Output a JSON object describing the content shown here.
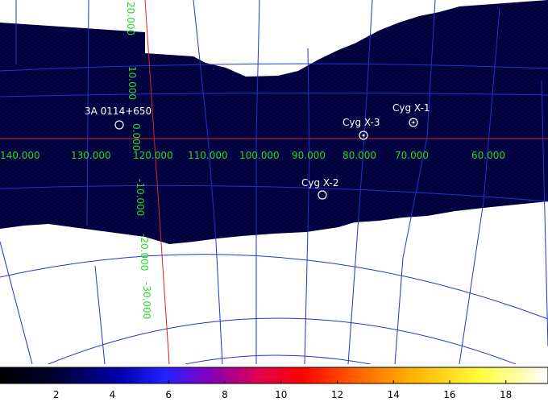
{
  "sky_map": {
    "longitude_labels": [
      "140.000",
      "130.000",
      "120.000",
      "110.000",
      "100.000",
      "90.000",
      "80.000",
      "70.000",
      "60.000"
    ],
    "latitude_labels": [
      "20.000",
      "10.000",
      "0.000",
      "-10.000",
      "-20.000",
      "-30.000"
    ],
    "sources": [
      {
        "name": "3A 0114+650"
      },
      {
        "name": "Cyg X-3"
      },
      {
        "name": "Cyg X-1"
      },
      {
        "name": "Cyg X-2"
      }
    ]
  },
  "colorbar": {
    "ticks": [
      "2",
      "4",
      "6",
      "8",
      "10",
      "12",
      "14",
      "16",
      "18"
    ],
    "min": 0,
    "max": 19.5
  },
  "colors": {
    "background_map": "#00003a",
    "grid_lines": "#2233cc",
    "equator_line": "#dd2222",
    "grid_labels": "#22dd22",
    "source_markers": "#ffffff"
  }
}
